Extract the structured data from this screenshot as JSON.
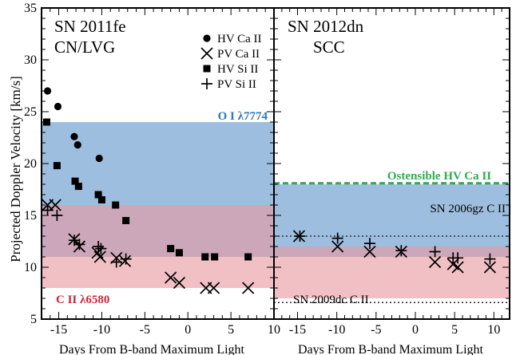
{
  "chart_data": [
    {
      "type": "scatter",
      "panel_title": "SN 2011fe",
      "panel_subtitle": "CN/LVG",
      "ylabel": "Projected Doppler Velocity [km/s]",
      "xlabel": "Days From B-band Maximum Light",
      "xlim": [
        -17,
        10
      ],
      "ylim": [
        5,
        35
      ],
      "x_ticks": [
        -15,
        -10,
        -5,
        0,
        5,
        10
      ],
      "y_ticks": [
        5,
        10,
        15,
        20,
        25,
        30,
        35
      ],
      "legend": {
        "placement": "top-right",
        "entries": [
          {
            "marker": "circle",
            "label": "HV Ca II"
          },
          {
            "marker": "x",
            "label": "PV Ca II"
          },
          {
            "marker": "square",
            "label": "HV Si II"
          },
          {
            "marker": "plus",
            "label": "PV Si II"
          }
        ]
      },
      "bands": [
        {
          "label": "O I λ7774",
          "range": [
            11,
            24
          ],
          "color": "#9ebedf",
          "label_color": "#2e78b8"
        },
        {
          "label": "C II λ6580",
          "range": [
            8,
            16
          ],
          "color": "#e89aa2",
          "label_color": "#c8283c"
        }
      ],
      "series": [
        {
          "name": "HV Ca II",
          "marker": "circle",
          "x": [
            -16.3,
            -15.1,
            -13.2,
            -12.8,
            -10.3
          ],
          "y": [
            27.0,
            25.5,
            22.6,
            21.8,
            20.5
          ]
        },
        {
          "name": "PV Ca II",
          "marker": "x",
          "x": [
            -16.3,
            -15.4,
            -13.2,
            -12.6,
            -10.5,
            -10.2,
            -8.3,
            -7.3,
            -2.0,
            -1.0,
            2.1,
            3.0,
            7.0
          ],
          "y": [
            16.0,
            16.0,
            12.7,
            12.0,
            11.4,
            11.0,
            10.9,
            10.6,
            9.0,
            8.5,
            8.0,
            8.0,
            8.0
          ]
        },
        {
          "name": "HV Si II",
          "marker": "square",
          "x": [
            -16.4,
            -15.2,
            -13.1,
            -12.7,
            -10.4,
            -10.0,
            -8.4,
            -7.2,
            -2.0,
            -1.0,
            2.0,
            3.1,
            7.0
          ],
          "y": [
            24.0,
            19.8,
            18.3,
            17.8,
            17.0,
            16.5,
            16.0,
            14.5,
            11.8,
            11.4,
            11.0,
            11.0,
            11.0
          ]
        },
        {
          "name": "PV Si II",
          "marker": "plus",
          "x": [
            -16.3,
            -15.2,
            -13.2,
            -12.6,
            -10.4,
            -10.1,
            -8.3,
            -7.2
          ],
          "y": [
            15.5,
            15.0,
            12.6,
            12.2,
            12.0,
            11.8,
            10.5,
            10.8
          ]
        }
      ]
    },
    {
      "type": "scatter",
      "panel_title": "SN 2012dn",
      "panel_subtitle": "SCC",
      "xlabel": "Days From B-band Maximum Light",
      "xlim": [
        -18,
        12
      ],
      "ylim": [
        5,
        35
      ],
      "x_ticks": [
        -15,
        -10,
        -5,
        0,
        5,
        10
      ],
      "bands": [
        {
          "range": [
            11,
            18
          ],
          "color": "#9ebedf"
        },
        {
          "range": [
            7,
            12
          ],
          "color": "#e89aa2"
        }
      ],
      "reference_lines": [
        {
          "label": "Ostensible HV Ca II",
          "y": 18.1,
          "style": "dashed",
          "color": "#34a853"
        },
        {
          "label": "SN 2006gz C II",
          "y": 13.0,
          "style": "dotted",
          "color": "#111111"
        },
        {
          "label": "SN 2009dc C II",
          "y": 6.6,
          "style": "dotted",
          "color": "#111111"
        }
      ],
      "series": [
        {
          "name": "PV Ca II",
          "marker": "x",
          "x": [
            -14.8,
            -9.9,
            -5.8,
            -1.8,
            2.5,
            4.8,
            5.4,
            9.5
          ],
          "y": [
            13.0,
            12.0,
            11.5,
            11.5,
            10.5,
            10.3,
            10.0,
            10.0
          ]
        },
        {
          "name": "PV Si II",
          "marker": "plus",
          "x": [
            -14.7,
            -9.9,
            -5.8,
            -1.8,
            2.5,
            4.8,
            5.4,
            9.5
          ],
          "y": [
            13.0,
            12.8,
            12.3,
            11.6,
            11.5,
            10.9,
            10.9,
            10.8
          ]
        }
      ]
    }
  ]
}
